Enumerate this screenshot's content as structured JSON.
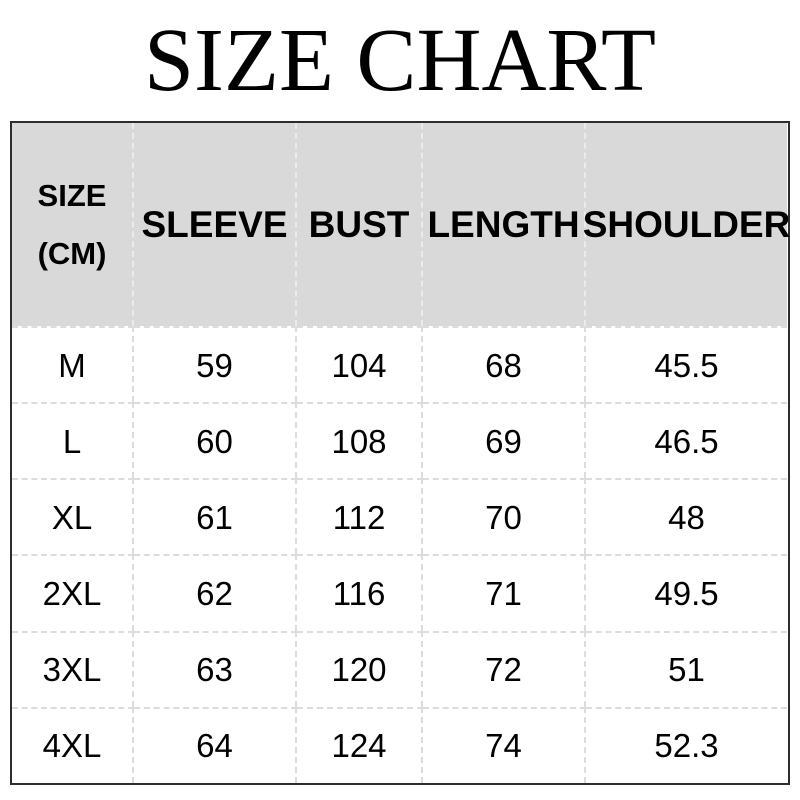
{
  "page": {
    "title": "SIZE CHART"
  },
  "colors": {
    "background": "#ffffff",
    "header_background": "#d9d9d9",
    "outer_border": "#2d2d2d",
    "grid_line": "#dcdcdc",
    "text": "#000000"
  },
  "table": {
    "header": {
      "size_line1": "SIZE",
      "size_line2": "(CM)",
      "sleeve": "SLEEVE",
      "bust": "BUST",
      "length": "LENGTH",
      "shoulder": "SHOULDER"
    },
    "rows": [
      {
        "size": "M",
        "sleeve": "59",
        "bust": "104",
        "length": "68",
        "shoulder": "45.5"
      },
      {
        "size": "L",
        "sleeve": "60",
        "bust": "108",
        "length": "69",
        "shoulder": "46.5"
      },
      {
        "size": "XL",
        "sleeve": "61",
        "bust": "112",
        "length": "70",
        "shoulder": "48"
      },
      {
        "size": "2XL",
        "sleeve": "62",
        "bust": "116",
        "length": "71",
        "shoulder": "49.5"
      },
      {
        "size": "3XL",
        "sleeve": "63",
        "bust": "120",
        "length": "72",
        "shoulder": "51"
      },
      {
        "size": "4XL",
        "sleeve": "64",
        "bust": "124",
        "length": "74",
        "shoulder": "52.3"
      }
    ]
  },
  "chart_data": {
    "type": "table",
    "title": "SIZE CHART",
    "unit": "CM",
    "columns": [
      "SIZE (CM)",
      "SLEEVE",
      "BUST",
      "LENGTH",
      "SHOULDER"
    ],
    "rows": [
      [
        "M",
        59,
        104,
        68,
        45.5
      ],
      [
        "L",
        60,
        108,
        69,
        46.5
      ],
      [
        "XL",
        61,
        112,
        70,
        48
      ],
      [
        "2XL",
        62,
        116,
        71,
        49.5
      ],
      [
        "3XL",
        63,
        120,
        72,
        51
      ],
      [
        "4XL",
        64,
        124,
        74,
        52.3
      ]
    ]
  }
}
